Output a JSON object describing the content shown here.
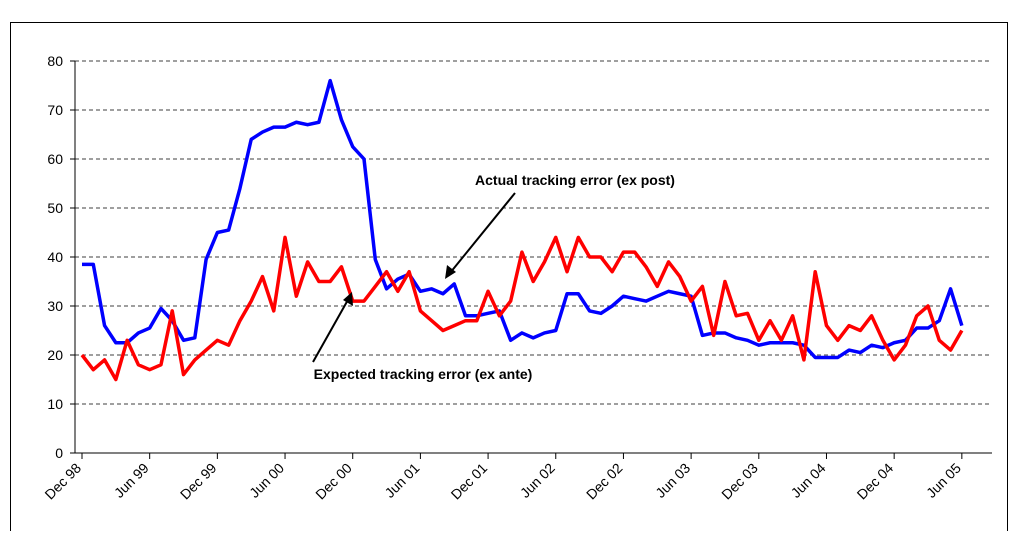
{
  "chart_data": {
    "type": "line",
    "categories": [
      "Dec 98",
      null,
      null,
      null,
      null,
      null,
      "Jun 99",
      null,
      null,
      null,
      null,
      null,
      "Dec 99",
      null,
      null,
      null,
      null,
      null,
      "Jun 00",
      null,
      null,
      null,
      null,
      null,
      "Dec 00",
      null,
      null,
      null,
      null,
      null,
      "Jun 01",
      null,
      null,
      null,
      null,
      null,
      "Dec 01",
      null,
      null,
      null,
      null,
      null,
      "Jun 02",
      null,
      null,
      null,
      null,
      null,
      "Dec 02",
      null,
      null,
      null,
      null,
      null,
      "Jun 03",
      null,
      null,
      null,
      null,
      null,
      "Dec 03",
      null,
      null,
      null,
      null,
      null,
      "Jun 04",
      null,
      null,
      null,
      null,
      null,
      "Dec 04",
      null,
      null,
      null,
      null,
      null,
      "Jun 05"
    ],
    "series": [
      {
        "name": "Actual tracking error (ex post)",
        "color": "#0000ff",
        "values": [
          38.5,
          38.5,
          26,
          22.5,
          22.5,
          24.5,
          25.5,
          29.5,
          27,
          23,
          23.5,
          39.5,
          45,
          45.5,
          54,
          64,
          65.5,
          66.5,
          66.5,
          67.5,
          67,
          67.5,
          76,
          68,
          62.5,
          60,
          39.5,
          33.5,
          35.5,
          36.5,
          33,
          33.5,
          32.5,
          34.5,
          28,
          28,
          28.5,
          29,
          23,
          24.5,
          23.5,
          24.5,
          25,
          32.5,
          32.5,
          29,
          28.5,
          30,
          32,
          31.5,
          31,
          32,
          33,
          32.5,
          32,
          24,
          24.5,
          24.5,
          23.5,
          23,
          22,
          22.5,
          22.5,
          22.5,
          22,
          19.5,
          19.5,
          19.5,
          21,
          20.5,
          22,
          21.5,
          22.5,
          23,
          25.5,
          25.5,
          27,
          33.5,
          26
        ]
      },
      {
        "name": "Expected tracking error (ex ante)",
        "color": "#ff0000",
        "values": [
          20,
          17,
          19,
          15,
          23,
          18,
          17,
          18,
          29,
          16,
          19,
          21,
          23,
          22,
          27,
          31,
          36,
          29,
          44,
          32,
          39,
          35,
          35,
          38,
          31,
          31,
          34,
          37,
          33,
          37,
          29,
          27,
          25,
          26,
          27,
          27,
          33,
          28,
          31,
          41,
          35,
          39,
          44,
          37,
          44,
          40,
          40,
          37,
          41,
          41,
          38,
          34,
          39,
          36,
          31,
          34,
          24,
          35,
          28,
          28.5,
          23,
          27,
          23,
          28,
          19,
          37,
          26,
          23,
          26,
          25,
          28,
          23,
          19,
          22,
          28,
          30,
          23,
          21,
          25
        ]
      }
    ],
    "annotations": [
      "Actual tracking error (ex post)",
      "Expected tracking error (ex ante)"
    ],
    "ylim": [
      0,
      80
    ],
    "yticks": [
      0,
      10,
      20,
      30,
      40,
      50,
      60,
      70,
      80
    ],
    "grid": true
  }
}
